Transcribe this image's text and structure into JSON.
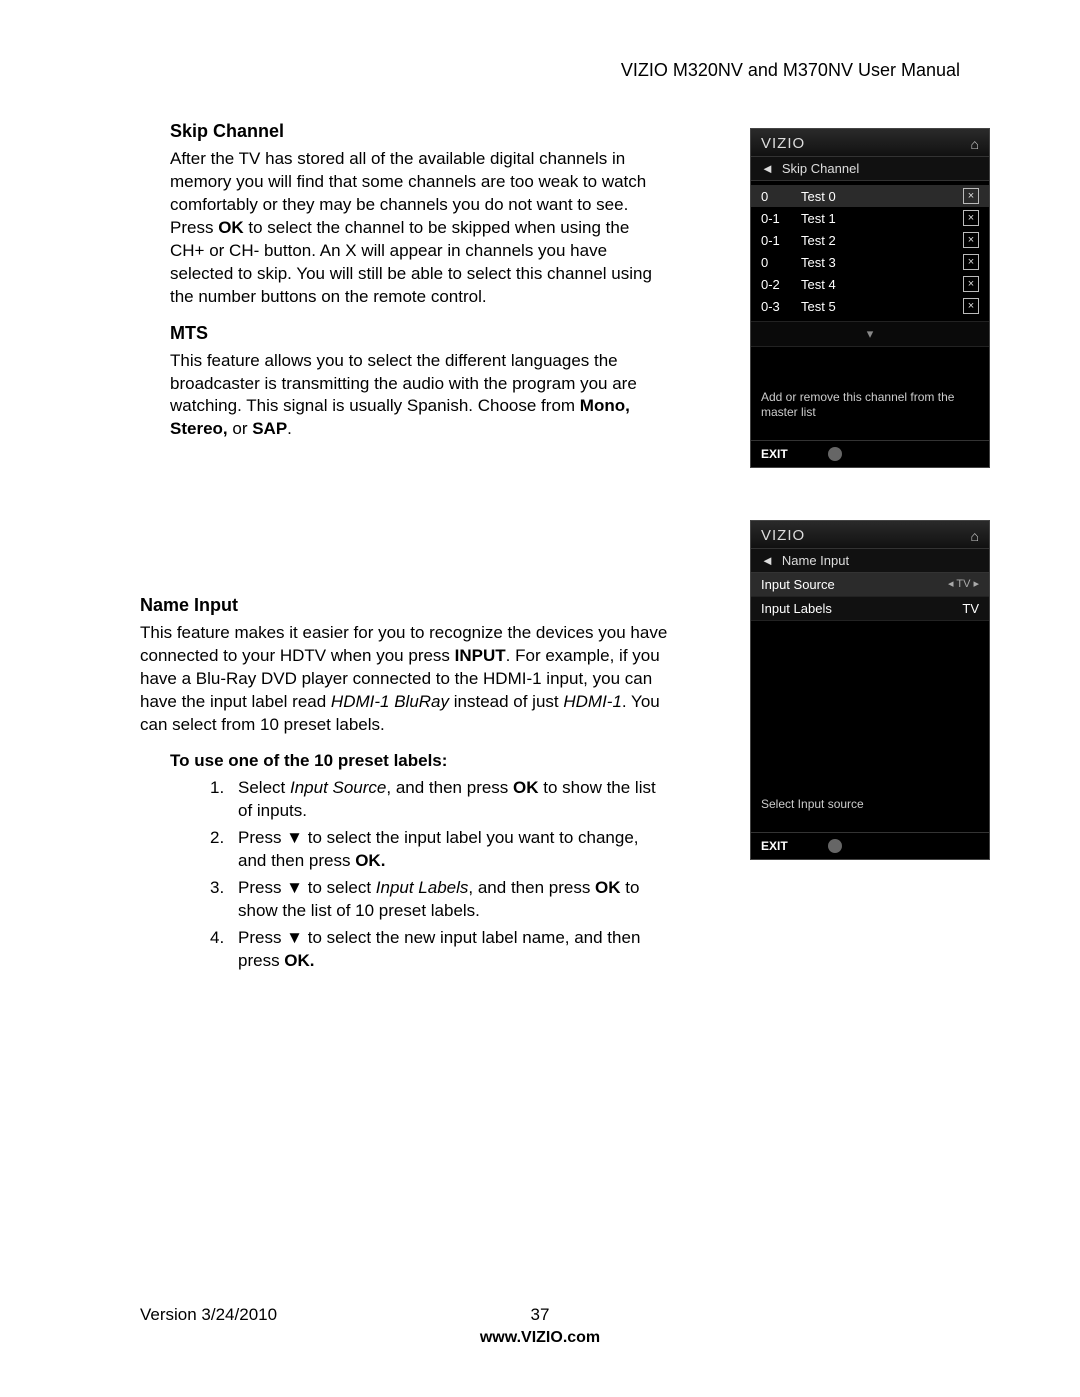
{
  "header": {
    "title": "VIZIO M320NV and M370NV User Manual"
  },
  "skip_channel": {
    "heading": "Skip Channel",
    "p1a": "After the TV has stored all of the available digital channels in memory you will find that some channels are too weak to watch comfortably or they may be channels you do not want to see. Press ",
    "p1b": "OK",
    "p1c": " to select the channel to be skipped when using the CH+ or CH- button. An X will appear in channels you have selected to skip. You will still be able to select this channel using the number buttons on the remote control."
  },
  "mts": {
    "heading": "MTS",
    "p_a": "This feature allows you to select the different languages the broadcaster is transmitting the audio with the program you are watching. This signal is usually Spanish. Choose from ",
    "p_b": "Mono, Stereo,",
    "p_c": " or ",
    "p_d": "SAP",
    "p_e": "."
  },
  "name_input": {
    "heading": "Name Input",
    "p_a": "This feature makes it easier for you to recognize the devices you have connected to your HDTV when you press ",
    "p_b": "INPUT",
    "p_c": ". For example, if you have a Blu-Ray DVD player connected to the HDMI-1 input, you can have the input label read ",
    "p_d": "HDMI-1 BluRay",
    "p_e": " instead of just ",
    "p_f": "HDMI-1",
    "p_g": ". You can select from 10 preset labels.",
    "sub": "To use one of the 10 preset labels:",
    "s1a": "Select ",
    "s1b": "Input Source",
    "s1c": ", and then press ",
    "s1d": "OK",
    "s1e": " to show the list of inputs.",
    "s2a": "Press ▼ to select the input label you want to change, and then press ",
    "s2b": "OK.",
    "s3a": "Press ▼ to select ",
    "s3b": "Input Labels",
    "s3c": ", and then press ",
    "s3d": "OK",
    "s3e": " to show the list of 10 preset labels.",
    "s4a": "Press ▼ to select the new input label name, and then press ",
    "s4b": "OK.",
    "n1": "1.",
    "n2": "2.",
    "n3": "3.",
    "n4": "4."
  },
  "osd1": {
    "brand": "VIZIO",
    "title": "Skip Channel",
    "rows": [
      {
        "c": "0",
        "n": "Test 0",
        "sel": true
      },
      {
        "c": "0-1",
        "n": "Test 1",
        "sel": false
      },
      {
        "c": "0-1",
        "n": "Test 2",
        "sel": false
      },
      {
        "c": "0",
        "n": "Test 3",
        "sel": false
      },
      {
        "c": "0-2",
        "n": "Test 4",
        "sel": false
      },
      {
        "c": "0-3",
        "n": "Test 5",
        "sel": false
      }
    ],
    "help": "Add or remove this channel from the master list",
    "exit": "EXIT"
  },
  "osd2": {
    "brand": "VIZIO",
    "title": "Name Input",
    "row1_l": "Input Source",
    "row1_r": "TV",
    "row2_l": "Input Labels",
    "row2_r": "TV",
    "help": "Select Input source",
    "exit": "EXIT"
  },
  "footer": {
    "version": "Version 3/24/2010",
    "page": "37",
    "url": "www.VIZIO.com"
  }
}
